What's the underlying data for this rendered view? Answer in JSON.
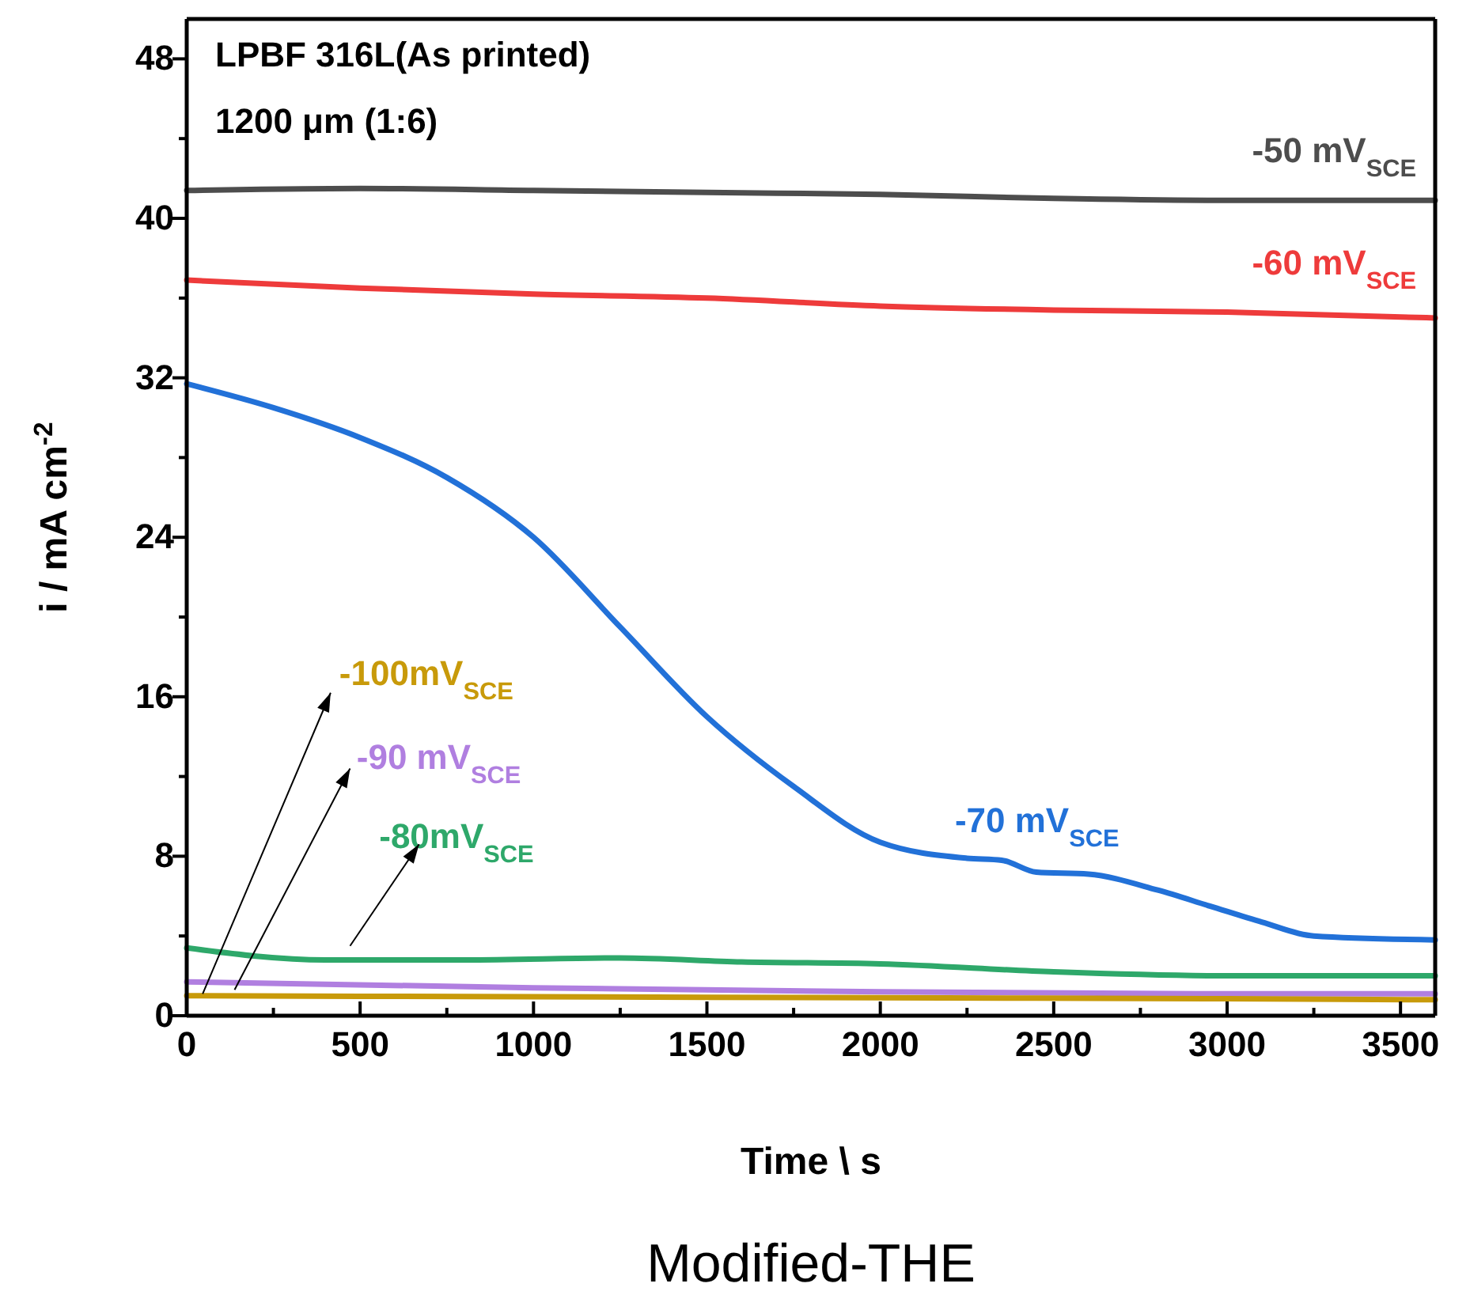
{
  "chart_data": {
    "type": "line",
    "title": "LPBF 316L(As printed)",
    "subtitle": "1200 μm (1:6)",
    "xlabel": "Time \\ s",
    "ylabel": "i / mA cm$^{-2}$",
    "xlim": [
      0,
      3600
    ],
    "ylim": [
      0,
      50
    ],
    "xticks": [
      0,
      {
        "value": 250,
        "label": null
      },
      500,
      {
        "value": 750,
        "label": null
      },
      1000,
      {
        "value": 1250,
        "label": null
      },
      1500,
      {
        "value": 1750,
        "label": null
      },
      2000,
      {
        "value": 2250,
        "label": null
      },
      2500,
      {
        "value": 2750,
        "label": null
      },
      3000,
      {
        "value": 3250,
        "label": null
      },
      3500
    ],
    "yticks": [
      0,
      {
        "value": 4,
        "label": null
      },
      8,
      {
        "value": 12,
        "label": null
      },
      16,
      {
        "value": 20,
        "label": null
      },
      24,
      {
        "value": 28,
        "label": null
      },
      32,
      {
        "value": 36,
        "label": null
      },
      40,
      {
        "value": 44,
        "label": null
      },
      48
    ],
    "grid": false,
    "marker": "none",
    "line_style": "solid",
    "series": [
      {
        "name": "-50 mV$_{SCE}$",
        "color": "#4d4d4d",
        "x": [
          0,
          500,
          1000,
          1500,
          2000,
          2500,
          3000,
          3600
        ],
        "values": [
          41.4,
          41.5,
          41.4,
          41.3,
          41.2,
          41.0,
          40.9,
          40.9
        ]
      },
      {
        "name": "-60 mV$_{SCE}$",
        "color": "#ee3b3b",
        "x": [
          0,
          500,
          1000,
          1500,
          2000,
          2500,
          3000,
          3600
        ],
        "values": [
          36.9,
          36.5,
          36.2,
          36.0,
          35.6,
          35.4,
          35.3,
          35.0
        ]
      },
      {
        "name": "-70 mV$_{SCE}$",
        "color": "#2271d8",
        "x": [
          0,
          250,
          500,
          750,
          1000,
          1250,
          1500,
          1750,
          2000,
          2250,
          2350,
          2450,
          2600,
          2800,
          2950,
          3100,
          3250,
          3600
        ],
        "values": [
          31.7,
          30.5,
          29.0,
          27.0,
          24.0,
          19.5,
          15.0,
          11.5,
          8.7,
          7.9,
          7.8,
          7.2,
          7.1,
          6.3,
          5.5,
          4.7,
          4.0,
          3.8
        ]
      },
      {
        "name": "-80mV$_{SCE}$",
        "color": "#2ea86a",
        "x": [
          0,
          400,
          800,
          1250,
          1600,
          2000,
          2500,
          3000,
          3600
        ],
        "values": [
          3.4,
          2.8,
          2.8,
          2.9,
          2.7,
          2.6,
          2.2,
          2.0,
          2.0
        ]
      },
      {
        "name": "-90 mV$_{SCE}$",
        "color": "#b07fe0",
        "x": [
          0,
          1000,
          2000,
          3000,
          3600
        ],
        "values": [
          1.7,
          1.4,
          1.2,
          1.1,
          1.1
        ]
      },
      {
        "name": "-100mV$_{SCE}$",
        "color": "#c89a0a",
        "x": [
          0,
          1000,
          2000,
          3000,
          3600
        ],
        "values": [
          1.0,
          0.95,
          0.9,
          0.85,
          0.8
        ]
      }
    ],
    "annotations": [
      "Modified-THE"
    ]
  }
}
